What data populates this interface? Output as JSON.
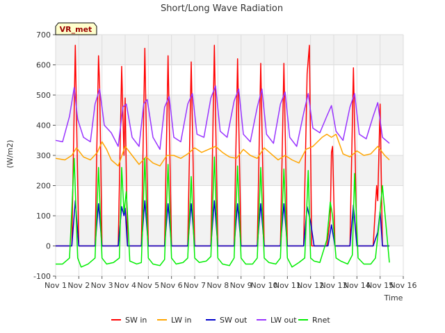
{
  "chart_data": {
    "type": "line",
    "title": "Short/Long Wave Radiation",
    "xlabel": "Time",
    "ylabel": "(W/m2)",
    "site_label": "VR_met",
    "xlim": [
      1,
      16
    ],
    "ylim": [
      -100,
      700
    ],
    "x_ticks": [
      {
        "v": 1,
        "label": "Nov 1"
      },
      {
        "v": 2,
        "label": "Nov 2"
      },
      {
        "v": 3,
        "label": "Nov 3"
      },
      {
        "v": 4,
        "label": "Nov 4"
      },
      {
        "v": 5,
        "label": "Nov 5"
      },
      {
        "v": 6,
        "label": "Nov 6"
      },
      {
        "v": 7,
        "label": "Nov 7"
      },
      {
        "v": 8,
        "label": "Nov 8"
      },
      {
        "v": 9,
        "label": "Nov 9"
      },
      {
        "v": 10,
        "label": "Nov 10"
      },
      {
        "v": 11,
        "label": "Nov 11"
      },
      {
        "v": 12,
        "label": "Nov 12"
      },
      {
        "v": 13,
        "label": "Nov 13"
      },
      {
        "v": 14,
        "label": "Nov 14"
      },
      {
        "v": 15,
        "label": "Nov 15"
      },
      {
        "v": 16,
        "label": "Nov 16"
      }
    ],
    "y_ticks": [
      -100,
      0,
      100,
      200,
      300,
      400,
      500,
      600,
      700
    ],
    "grid": true,
    "legend_position": "bottom",
    "series": [
      {
        "name": "SW in",
        "color": "#ff0000",
        "x": [
          1.0,
          1.5,
          1.7,
          1.85,
          2.0,
          2.15,
          2.3,
          2.5,
          2.7,
          2.85,
          2.9,
          3.0,
          3.15,
          3.3,
          3.5,
          3.7,
          3.85,
          3.95,
          4.0,
          4.1,
          4.3,
          4.5,
          4.7,
          4.85,
          5.0,
          5.15,
          5.3,
          5.5,
          5.7,
          5.85,
          6.0,
          6.15,
          6.3,
          6.5,
          6.7,
          6.85,
          7.0,
          7.15,
          7.3,
          7.5,
          7.7,
          7.85,
          8.0,
          8.15,
          8.3,
          8.5,
          8.7,
          8.85,
          9.0,
          9.15,
          9.3,
          9.5,
          9.7,
          9.85,
          10.0,
          10.15,
          10.3,
          10.5,
          10.7,
          10.85,
          11.0,
          11.15,
          11.3,
          11.5,
          11.7,
          11.85,
          11.95,
          12.05,
          12.15,
          12.3,
          12.5,
          12.7,
          12.85,
          12.9,
          12.95,
          13.05,
          13.2,
          13.5,
          13.7,
          13.85,
          14.0,
          14.15,
          14.3,
          14.5,
          14.7,
          14.85,
          14.9,
          15.0,
          15.1,
          15.25,
          15.4
        ],
        "y": [
          0,
          0,
          0,
          665,
          0,
          0,
          0,
          0,
          0,
          630,
          530,
          0,
          0,
          0,
          0,
          0,
          595,
          300,
          490,
          0,
          0,
          0,
          0,
          655,
          0,
          0,
          0,
          0,
          0,
          630,
          0,
          0,
          0,
          0,
          0,
          610,
          0,
          0,
          0,
          0,
          0,
          665,
          0,
          0,
          0,
          0,
          0,
          620,
          0,
          0,
          0,
          0,
          0,
          605,
          0,
          0,
          0,
          0,
          0,
          605,
          0,
          0,
          0,
          0,
          0,
          570,
          665,
          0,
          0,
          0,
          0,
          0,
          90,
          310,
          330,
          0,
          0,
          0,
          0,
          590,
          0,
          0,
          0,
          0,
          0,
          200,
          150,
          470,
          0,
          0,
          0
        ]
      },
      {
        "name": "LW in",
        "color": "#ffa500",
        "x": [
          1.0,
          1.4,
          1.7,
          1.9,
          2.2,
          2.5,
          2.8,
          3.0,
          3.2,
          3.4,
          3.7,
          4.0,
          4.3,
          4.6,
          4.9,
          5.2,
          5.5,
          5.8,
          6.1,
          6.4,
          6.7,
          7.0,
          7.3,
          7.6,
          7.9,
          8.2,
          8.5,
          8.8,
          9.1,
          9.4,
          9.7,
          10.0,
          10.3,
          10.6,
          10.9,
          11.2,
          11.5,
          11.8,
          12.1,
          12.3,
          12.5,
          12.7,
          12.9,
          13.1,
          13.4,
          13.7,
          14.0,
          14.3,
          14.6,
          14.9,
          15.2,
          15.4
        ],
        "y": [
          290,
          285,
          300,
          325,
          295,
          285,
          310,
          345,
          320,
          285,
          265,
          330,
          300,
          270,
          295,
          275,
          265,
          300,
          300,
          290,
          305,
          325,
          310,
          320,
          330,
          310,
          295,
          290,
          320,
          300,
          290,
          325,
          305,
          285,
          300,
          285,
          275,
          320,
          330,
          345,
          360,
          370,
          360,
          370,
          305,
          295,
          315,
          300,
          305,
          330,
          300,
          285
        ]
      },
      {
        "name": "SW out",
        "color": "#0000cc",
        "x": [
          1.0,
          1.5,
          1.7,
          1.85,
          2.0,
          2.15,
          2.5,
          2.7,
          2.85,
          3.0,
          3.15,
          3.5,
          3.7,
          3.85,
          3.95,
          4.0,
          4.1,
          4.5,
          4.7,
          4.85,
          5.0,
          5.15,
          5.5,
          5.7,
          5.85,
          6.0,
          6.15,
          6.5,
          6.7,
          6.85,
          7.0,
          7.15,
          7.5,
          7.7,
          7.85,
          8.0,
          8.15,
          8.5,
          8.7,
          8.85,
          9.0,
          9.15,
          9.5,
          9.7,
          9.85,
          10.0,
          10.15,
          10.5,
          10.7,
          10.85,
          11.0,
          11.15,
          11.5,
          11.7,
          11.85,
          12.0,
          12.15,
          12.5,
          12.75,
          12.9,
          13.05,
          13.2,
          13.5,
          13.7,
          13.85,
          14.0,
          14.15,
          14.5,
          14.7,
          14.9,
          15.0,
          15.1,
          15.4
        ],
        "y": [
          0,
          0,
          0,
          150,
          0,
          0,
          0,
          0,
          140,
          0,
          0,
          0,
          0,
          130,
          100,
          125,
          0,
          0,
          0,
          150,
          0,
          0,
          0,
          0,
          140,
          0,
          0,
          0,
          0,
          140,
          0,
          0,
          0,
          0,
          150,
          0,
          0,
          0,
          0,
          140,
          0,
          0,
          0,
          0,
          140,
          0,
          0,
          0,
          0,
          140,
          0,
          0,
          0,
          0,
          130,
          80,
          0,
          0,
          0,
          70,
          0,
          0,
          0,
          0,
          135,
          0,
          0,
          0,
          0,
          45,
          115,
          0,
          0
        ]
      },
      {
        "name": "LW out",
        "color": "#9933ff",
        "x": [
          1.0,
          1.3,
          1.6,
          1.8,
          1.95,
          2.2,
          2.5,
          2.7,
          2.9,
          3.1,
          3.4,
          3.7,
          3.9,
          4.05,
          4.3,
          4.6,
          4.8,
          4.95,
          5.2,
          5.5,
          5.7,
          5.9,
          6.1,
          6.4,
          6.7,
          6.9,
          7.1,
          7.4,
          7.7,
          7.9,
          8.1,
          8.4,
          8.7,
          8.9,
          9.1,
          9.4,
          9.7,
          9.9,
          10.1,
          10.4,
          10.7,
          10.9,
          11.1,
          11.4,
          11.7,
          11.9,
          12.1,
          12.4,
          12.7,
          12.9,
          13.1,
          13.4,
          13.7,
          13.9,
          14.1,
          14.4,
          14.7,
          14.9,
          15.1,
          15.4
        ],
        "y": [
          350,
          345,
          430,
          525,
          420,
          360,
          345,
          470,
          520,
          400,
          375,
          330,
          460,
          470,
          360,
          330,
          470,
          485,
          360,
          320,
          460,
          495,
          360,
          345,
          470,
          505,
          370,
          360,
          490,
          530,
          380,
          360,
          480,
          520,
          370,
          345,
          460,
          520,
          370,
          340,
          470,
          510,
          360,
          330,
          440,
          505,
          390,
          375,
          430,
          465,
          380,
          350,
          460,
          505,
          370,
          355,
          430,
          475,
          360,
          340
        ]
      },
      {
        "name": "Rnet",
        "color": "#00ee00",
        "x": [
          1.0,
          1.3,
          1.6,
          1.8,
          1.95,
          2.1,
          2.4,
          2.7,
          2.85,
          3.0,
          3.2,
          3.5,
          3.75,
          3.85,
          3.95,
          4.05,
          4.2,
          4.5,
          4.7,
          4.85,
          5.0,
          5.2,
          5.5,
          5.7,
          5.85,
          6.0,
          6.2,
          6.5,
          6.7,
          6.85,
          7.0,
          7.2,
          7.5,
          7.7,
          7.85,
          8.0,
          8.2,
          8.5,
          8.7,
          8.85,
          9.0,
          9.2,
          9.5,
          9.7,
          9.85,
          10.0,
          10.2,
          10.5,
          10.7,
          10.85,
          11.0,
          11.2,
          11.5,
          11.75,
          11.9,
          12.0,
          12.15,
          12.4,
          12.7,
          12.85,
          12.95,
          13.1,
          13.3,
          13.6,
          13.8,
          13.9,
          14.05,
          14.3,
          14.6,
          14.8,
          14.95,
          15.1,
          15.4
        ],
        "y": [
          -60,
          -60,
          -40,
          290,
          -40,
          -70,
          -60,
          -40,
          260,
          -40,
          -60,
          -55,
          -40,
          260,
          110,
          180,
          -50,
          -60,
          -55,
          290,
          -40,
          -60,
          -65,
          -45,
          270,
          -40,
          -60,
          -55,
          -40,
          230,
          -40,
          -55,
          -50,
          -35,
          295,
          -40,
          -60,
          -65,
          -40,
          265,
          -40,
          -60,
          -60,
          -40,
          260,
          -40,
          -55,
          -60,
          -40,
          255,
          -40,
          -70,
          -55,
          -40,
          250,
          -40,
          -50,
          -55,
          20,
          145,
          100,
          -40,
          -50,
          -60,
          -30,
          240,
          -40,
          -60,
          -60,
          -40,
          70,
          200,
          -55
        ]
      }
    ]
  }
}
